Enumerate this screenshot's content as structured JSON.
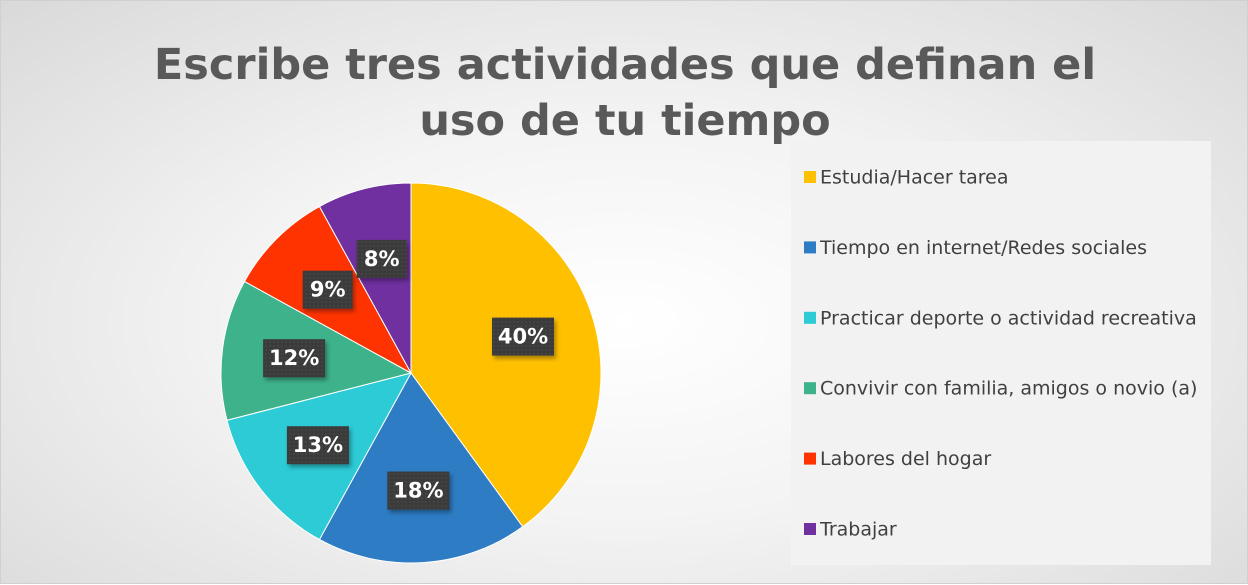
{
  "chart_data": {
    "type": "pie",
    "title": "Escribe tres actividades que definan el uso de tu tiempo",
    "categories": [
      "Estudia/Hacer tarea",
      "Tiempo en internet/Redes sociales",
      "Practicar deporte o actividad recreativa",
      "Convivir con familia, amigos o novio (a)",
      "Labores del hogar",
      "Trabajar"
    ],
    "values": [
      40,
      18,
      13,
      12,
      9,
      8
    ],
    "value_labels": [
      "40%",
      "18%",
      "13%",
      "12%",
      "9%",
      "8%"
    ],
    "colors": [
      "#FFC000",
      "#2E7CC4",
      "#2CCBD6",
      "#3DB28B",
      "#FF3300",
      "#7030A0"
    ],
    "legend": "right"
  }
}
